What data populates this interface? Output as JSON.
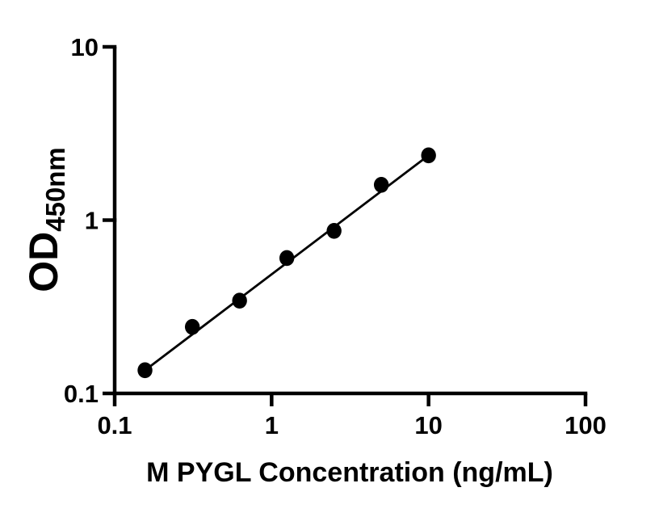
{
  "page": {
    "background_color": "#ffffff",
    "foreground_color": "#000000"
  },
  "chart_data": {
    "type": "scatter",
    "title": "",
    "xlabel": "M PYGL Concentration (ng/mL)",
    "ylabel_main": "OD",
    "ylabel_sub": "450nm",
    "x_scale": "log",
    "y_scale": "log",
    "xlim": [
      0.1,
      100
    ],
    "ylim": [
      0.1,
      10
    ],
    "x_ticks": [
      0.1,
      1,
      10,
      100
    ],
    "x_tick_labels": [
      "0.1",
      "1",
      "10",
      "100"
    ],
    "y_ticks": [
      0.1,
      1,
      10
    ],
    "y_tick_labels": [
      "0.1",
      "1",
      "10"
    ],
    "grid": false,
    "legend_position": "none",
    "marker_style": "filled-circle",
    "marker_color": "#000000",
    "line_color": "#000000",
    "series": [
      {
        "x": [
          0.156,
          0.3125,
          0.625,
          1.25,
          2.5,
          5,
          10
        ],
        "y": [
          0.136,
          0.242,
          0.343,
          0.604,
          0.867,
          1.599,
          2.364
        ]
      }
    ],
    "trend_line": {
      "type": "straight",
      "from_point": 0,
      "to_point": 6
    }
  }
}
